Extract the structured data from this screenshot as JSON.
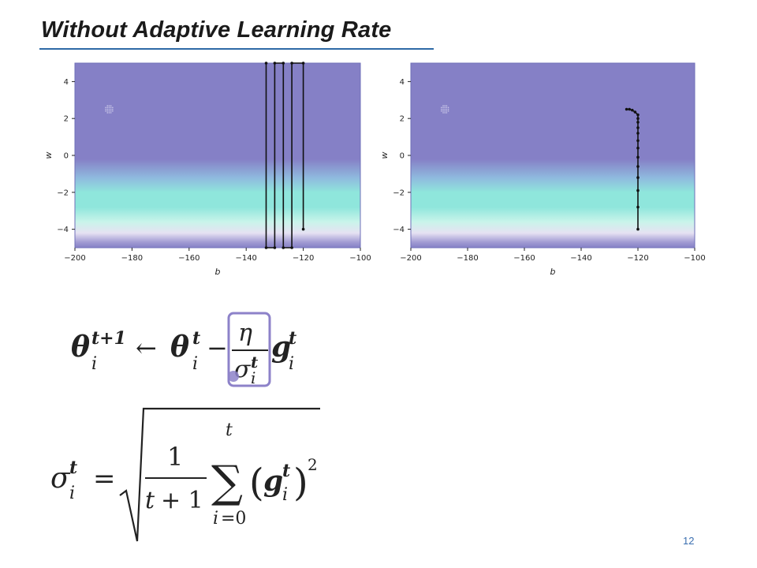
{
  "slide": {
    "title": "Without Adaptive Learning Rate",
    "page_number": "12",
    "highlight_color": "#8d82c9"
  },
  "chart_data": [
    {
      "type": "heatmap",
      "xlabel": "b",
      "ylabel": "w",
      "xlim": [
        -200,
        -100
      ],
      "ylim": [
        -5,
        5
      ],
      "xticks": [
        "−200",
        "−180",
        "−160",
        "−140",
        "−120",
        "−100"
      ],
      "yticks": [
        "4",
        "2",
        "0",
        "−2",
        "−4"
      ],
      "colors": {
        "background": "#8580c6",
        "band": "#8fe6dc",
        "path": "#111111"
      },
      "target_marker": {
        "b": -188,
        "w": 2.5
      },
      "path": {
        "b": [
          -120,
          -120,
          -124,
          -124,
          -127,
          -127,
          -130,
          -130,
          -133,
          -133
        ],
        "w": [
          -4,
          5,
          5,
          -5,
          -5,
          5,
          5,
          -5,
          -5,
          5
        ]
      }
    },
    {
      "type": "heatmap",
      "xlabel": "b",
      "ylabel": "w",
      "xlim": [
        -200,
        -100
      ],
      "ylim": [
        -5,
        5
      ],
      "xticks": [
        "−200",
        "−180",
        "−160",
        "−140",
        "−120",
        "−100"
      ],
      "yticks": [
        "4",
        "2",
        "0",
        "−2",
        "−4"
      ],
      "colors": {
        "background": "#8580c6",
        "band": "#8fe6dc",
        "path": "#111111"
      },
      "target_marker": {
        "b": -188,
        "w": 2.5
      },
      "path": {
        "b": [
          -120,
          -120,
          -120,
          -120,
          -120,
          -120,
          -120,
          -120,
          -120,
          -120,
          -120,
          -120,
          -120,
          -121,
          -122,
          -123,
          -124
        ],
        "w": [
          -4,
          -2.8,
          -1.9,
          -1.2,
          -0.6,
          -0.1,
          0.4,
          0.8,
          1.2,
          1.5,
          1.8,
          2.0,
          2.2,
          2.35,
          2.45,
          2.5,
          2.5
        ]
      }
    }
  ]
}
